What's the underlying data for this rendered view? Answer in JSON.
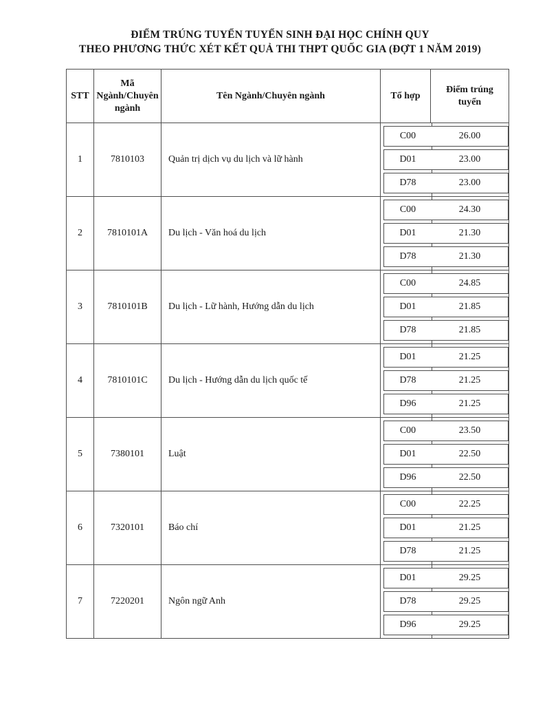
{
  "title": {
    "line1": "ĐIỂM TRÚNG TUYỂN TUYỂN SINH ĐẠI HỌC CHÍNH QUY",
    "line2": "THEO PHƯƠNG THỨC XÉT KẾT QUẢ THI THPT QUỐC GIA (ĐỢT 1 NĂM 2019)"
  },
  "table": {
    "headers": [
      "STT",
      "Mã Ngành/Chuyên ngành",
      "Tên Ngành/Chuyên ngành",
      "Tổ hợp",
      "Điểm trúng tuyển"
    ],
    "rows": [
      {
        "stt": "1",
        "code": "7810103",
        "name": "Quản trị dịch vụ du lịch và lữ hành",
        "scores": [
          {
            "combo": "C00",
            "score": "26.00"
          },
          {
            "combo": "D01",
            "score": "23.00"
          },
          {
            "combo": "D78",
            "score": "23.00"
          }
        ]
      },
      {
        "stt": "2",
        "code": "7810101A",
        "name": "Du lịch - Văn hoá du lịch",
        "scores": [
          {
            "combo": "C00",
            "score": "24.30"
          },
          {
            "combo": "D01",
            "score": "21.30"
          },
          {
            "combo": "D78",
            "score": "21.30"
          }
        ]
      },
      {
        "stt": "3",
        "code": "7810101B",
        "name": "Du lịch - Lữ hành, Hướng dẫn du lịch",
        "scores": [
          {
            "combo": "C00",
            "score": "24.85"
          },
          {
            "combo": "D01",
            "score": "21.85"
          },
          {
            "combo": "D78",
            "score": "21.85"
          }
        ]
      },
      {
        "stt": "4",
        "code": "7810101C",
        "name": "Du lịch - Hướng dẫn du lịch quốc tế",
        "scores": [
          {
            "combo": "D01",
            "score": "21.25"
          },
          {
            "combo": "D78",
            "score": "21.25"
          },
          {
            "combo": "D96",
            "score": "21.25"
          }
        ]
      },
      {
        "stt": "5",
        "code": "7380101",
        "name": "Luật",
        "scores": [
          {
            "combo": "C00",
            "score": "23.50"
          },
          {
            "combo": "D01",
            "score": "22.50"
          },
          {
            "combo": "D96",
            "score": "22.50"
          }
        ]
      },
      {
        "stt": "6",
        "code": "7320101",
        "name": "Báo chí",
        "scores": [
          {
            "combo": "C00",
            "score": "22.25"
          },
          {
            "combo": "D01",
            "score": "21.25"
          },
          {
            "combo": "D78",
            "score": "21.25"
          }
        ]
      },
      {
        "stt": "7",
        "code": "7220201",
        "name": "Ngôn ngữ Anh",
        "scores": [
          {
            "combo": "D01",
            "score": "29.25"
          },
          {
            "combo": "D78",
            "score": "29.25"
          },
          {
            "combo": "D96",
            "score": "29.25"
          }
        ]
      }
    ]
  },
  "colors": {
    "border": "#4e4e4e",
    "text": "#1b1b1b",
    "background": "#ffffff"
  }
}
